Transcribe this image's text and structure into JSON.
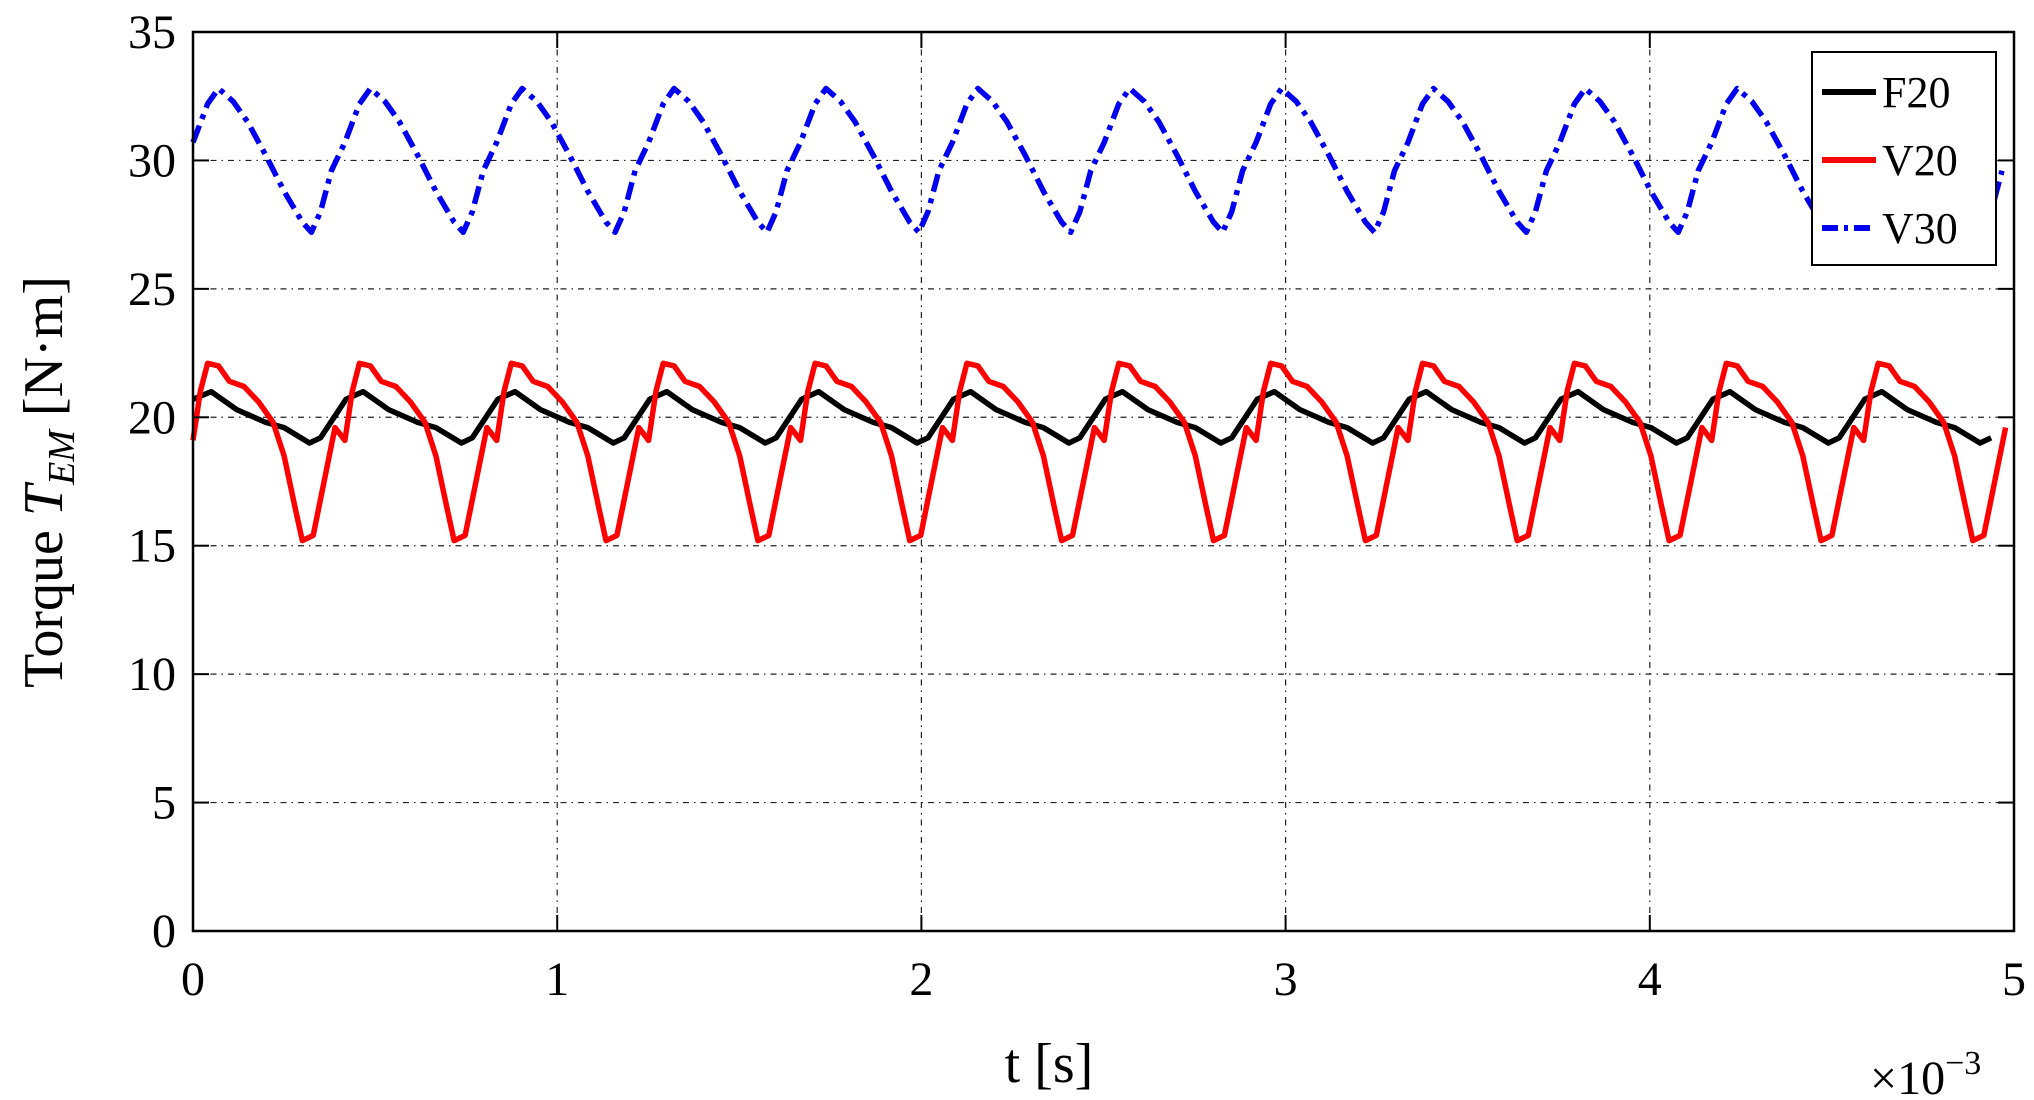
{
  "chart_data": {
    "type": "line",
    "title": "",
    "xlabel": "t [s]",
    "ylabel_prefix": "Torque ",
    "ylabel_symbol": "T",
    "ylabel_subscript": "EM",
    "ylabel_unit": " [N·m]",
    "x_exponent_base": "×10",
    "x_exponent_power": "−3",
    "xlim": [
      0,
      5
    ],
    "ylim": [
      0,
      35
    ],
    "xticks": [
      "0",
      "1",
      "2",
      "3",
      "4",
      "5"
    ],
    "yticks": [
      "0",
      "5",
      "10",
      "15",
      "20",
      "25",
      "30",
      "35"
    ],
    "grid": true,
    "legend_position": "top-right",
    "period": 0.417,
    "series": [
      {
        "name": "F20",
        "color": "#000000",
        "style": "solid",
        "shape": [
          [
            0.0,
            20.7
          ],
          [
            0.05,
            21.0
          ],
          [
            0.12,
            20.3
          ],
          [
            0.2,
            19.8
          ],
          [
            0.25,
            19.6
          ],
          [
            0.32,
            19.0
          ],
          [
            0.35,
            19.2
          ],
          [
            0.42,
            20.7
          ]
        ]
      },
      {
        "name": "V20",
        "color": "#ff0000",
        "style": "solid",
        "shape": [
          [
            0.0,
            19.1
          ],
          [
            0.02,
            21.0
          ],
          [
            0.04,
            22.1
          ],
          [
            0.07,
            22.0
          ],
          [
            0.1,
            21.4
          ],
          [
            0.14,
            21.2
          ],
          [
            0.18,
            20.6
          ],
          [
            0.22,
            19.8
          ],
          [
            0.25,
            18.5
          ],
          [
            0.28,
            16.5
          ],
          [
            0.3,
            15.2
          ],
          [
            0.33,
            15.4
          ],
          [
            0.36,
            17.5
          ],
          [
            0.39,
            19.6
          ],
          [
            0.417,
            19.1
          ]
        ]
      },
      {
        "name": "V30",
        "color": "#0000ee",
        "style": "dashdot",
        "shape": [
          [
            0.0,
            30.7
          ],
          [
            0.04,
            32.2
          ],
          [
            0.07,
            32.8
          ],
          [
            0.11,
            32.3
          ],
          [
            0.15,
            31.5
          ],
          [
            0.2,
            30.2
          ],
          [
            0.25,
            28.8
          ],
          [
            0.3,
            27.6
          ],
          [
            0.325,
            27.2
          ],
          [
            0.35,
            28.0
          ],
          [
            0.38,
            29.6
          ],
          [
            0.417,
            30.7
          ]
        ]
      }
    ]
  }
}
